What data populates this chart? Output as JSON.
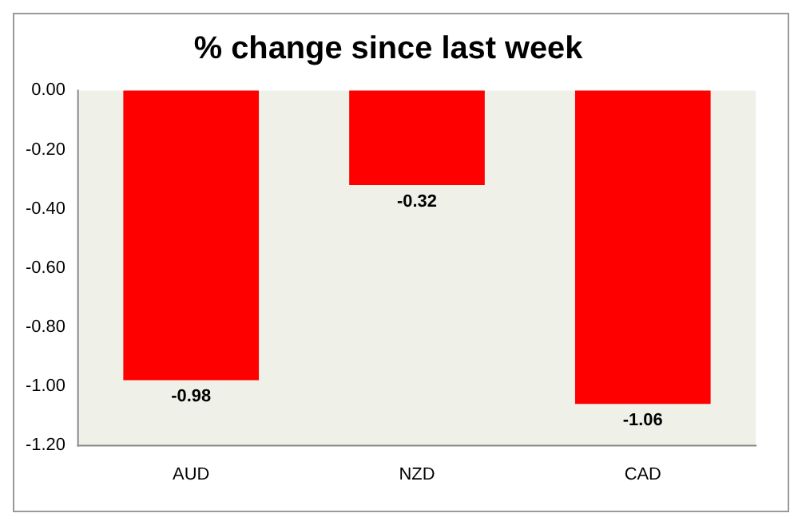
{
  "chart_data": {
    "type": "bar",
    "title": "% change since last week",
    "categories": [
      "AUD",
      "NZD",
      "CAD"
    ],
    "values": [
      -0.98,
      -0.32,
      -1.06
    ],
    "color": "#ff0000",
    "ylim": [
      -1.2,
      0
    ],
    "yticks": [
      {
        "value": 0,
        "label": "0.00"
      },
      {
        "value": -0.2,
        "label": "-0.20"
      },
      {
        "value": -0.4,
        "label": "-0.40"
      },
      {
        "value": -0.6,
        "label": "-0.60"
      },
      {
        "value": -0.8,
        "label": "-0.80"
      },
      {
        "value": -1,
        "label": "-1.00"
      },
      {
        "value": -1.2,
        "label": "-1.20"
      }
    ],
    "grid": false,
    "legend": false,
    "data_labels": true
  }
}
